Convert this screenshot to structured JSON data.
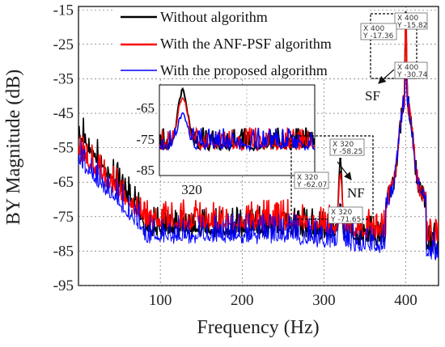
{
  "chart_data": {
    "type": "line",
    "title": "",
    "xlabel": "Frequency (Hz)",
    "ylabel": "BY Magnitude (dB)",
    "xlim": [
      0,
      440
    ],
    "ylim": [
      -95,
      -14
    ],
    "xticks": [
      "100",
      "200",
      "300",
      "400"
    ],
    "yticks": [
      "-15",
      "-25",
      "-35",
      "-45",
      "-55",
      "-65",
      "-75",
      "-85",
      "-95"
    ],
    "grid": true,
    "legend_position": "top-left",
    "series": [
      {
        "name": "Without algorithm",
        "color": "#000000",
        "peaks": [
          [
            320,
            -58.25
          ],
          [
            400,
            -15.82
          ]
        ]
      },
      {
        "name": "With the ANF-PSF algorithm",
        "color": "#ff0000",
        "peaks": [
          [
            320,
            -62.07
          ],
          [
            400,
            -17.36
          ]
        ]
      },
      {
        "name": "With the proposed algorithm",
        "color": "#0000ff",
        "peaks": [
          [
            320,
            -71.65
          ],
          [
            400,
            -30.74
          ]
        ]
      }
    ],
    "datatips": [
      {
        "x_text": "X 400",
        "y_text": "Y -15.82",
        "x": 400,
        "y": -15.82
      },
      {
        "x_text": "X 400",
        "y_text": "Y -17.36",
        "x": 400,
        "y": -17.36
      },
      {
        "x_text": "X 400",
        "y_text": "Y -30.74",
        "x": 400,
        "y": -30.74
      },
      {
        "x_text": "X 320",
        "y_text": "Y -58.25",
        "x": 320,
        "y": -58.25
      },
      {
        "x_text": "X 320",
        "y_text": "Y -62.07",
        "x": 320,
        "y": -62.07
      },
      {
        "x_text": "X 320",
        "y_text": "Y -71.65",
        "x": 320,
        "y": -71.65
      }
    ],
    "annotations": [
      "SF",
      "NF"
    ],
    "inset": {
      "xtick": "320",
      "yticks": [
        "-65",
        "-75",
        "-85"
      ],
      "ylim": [
        -90,
        -58
      ]
    }
  }
}
